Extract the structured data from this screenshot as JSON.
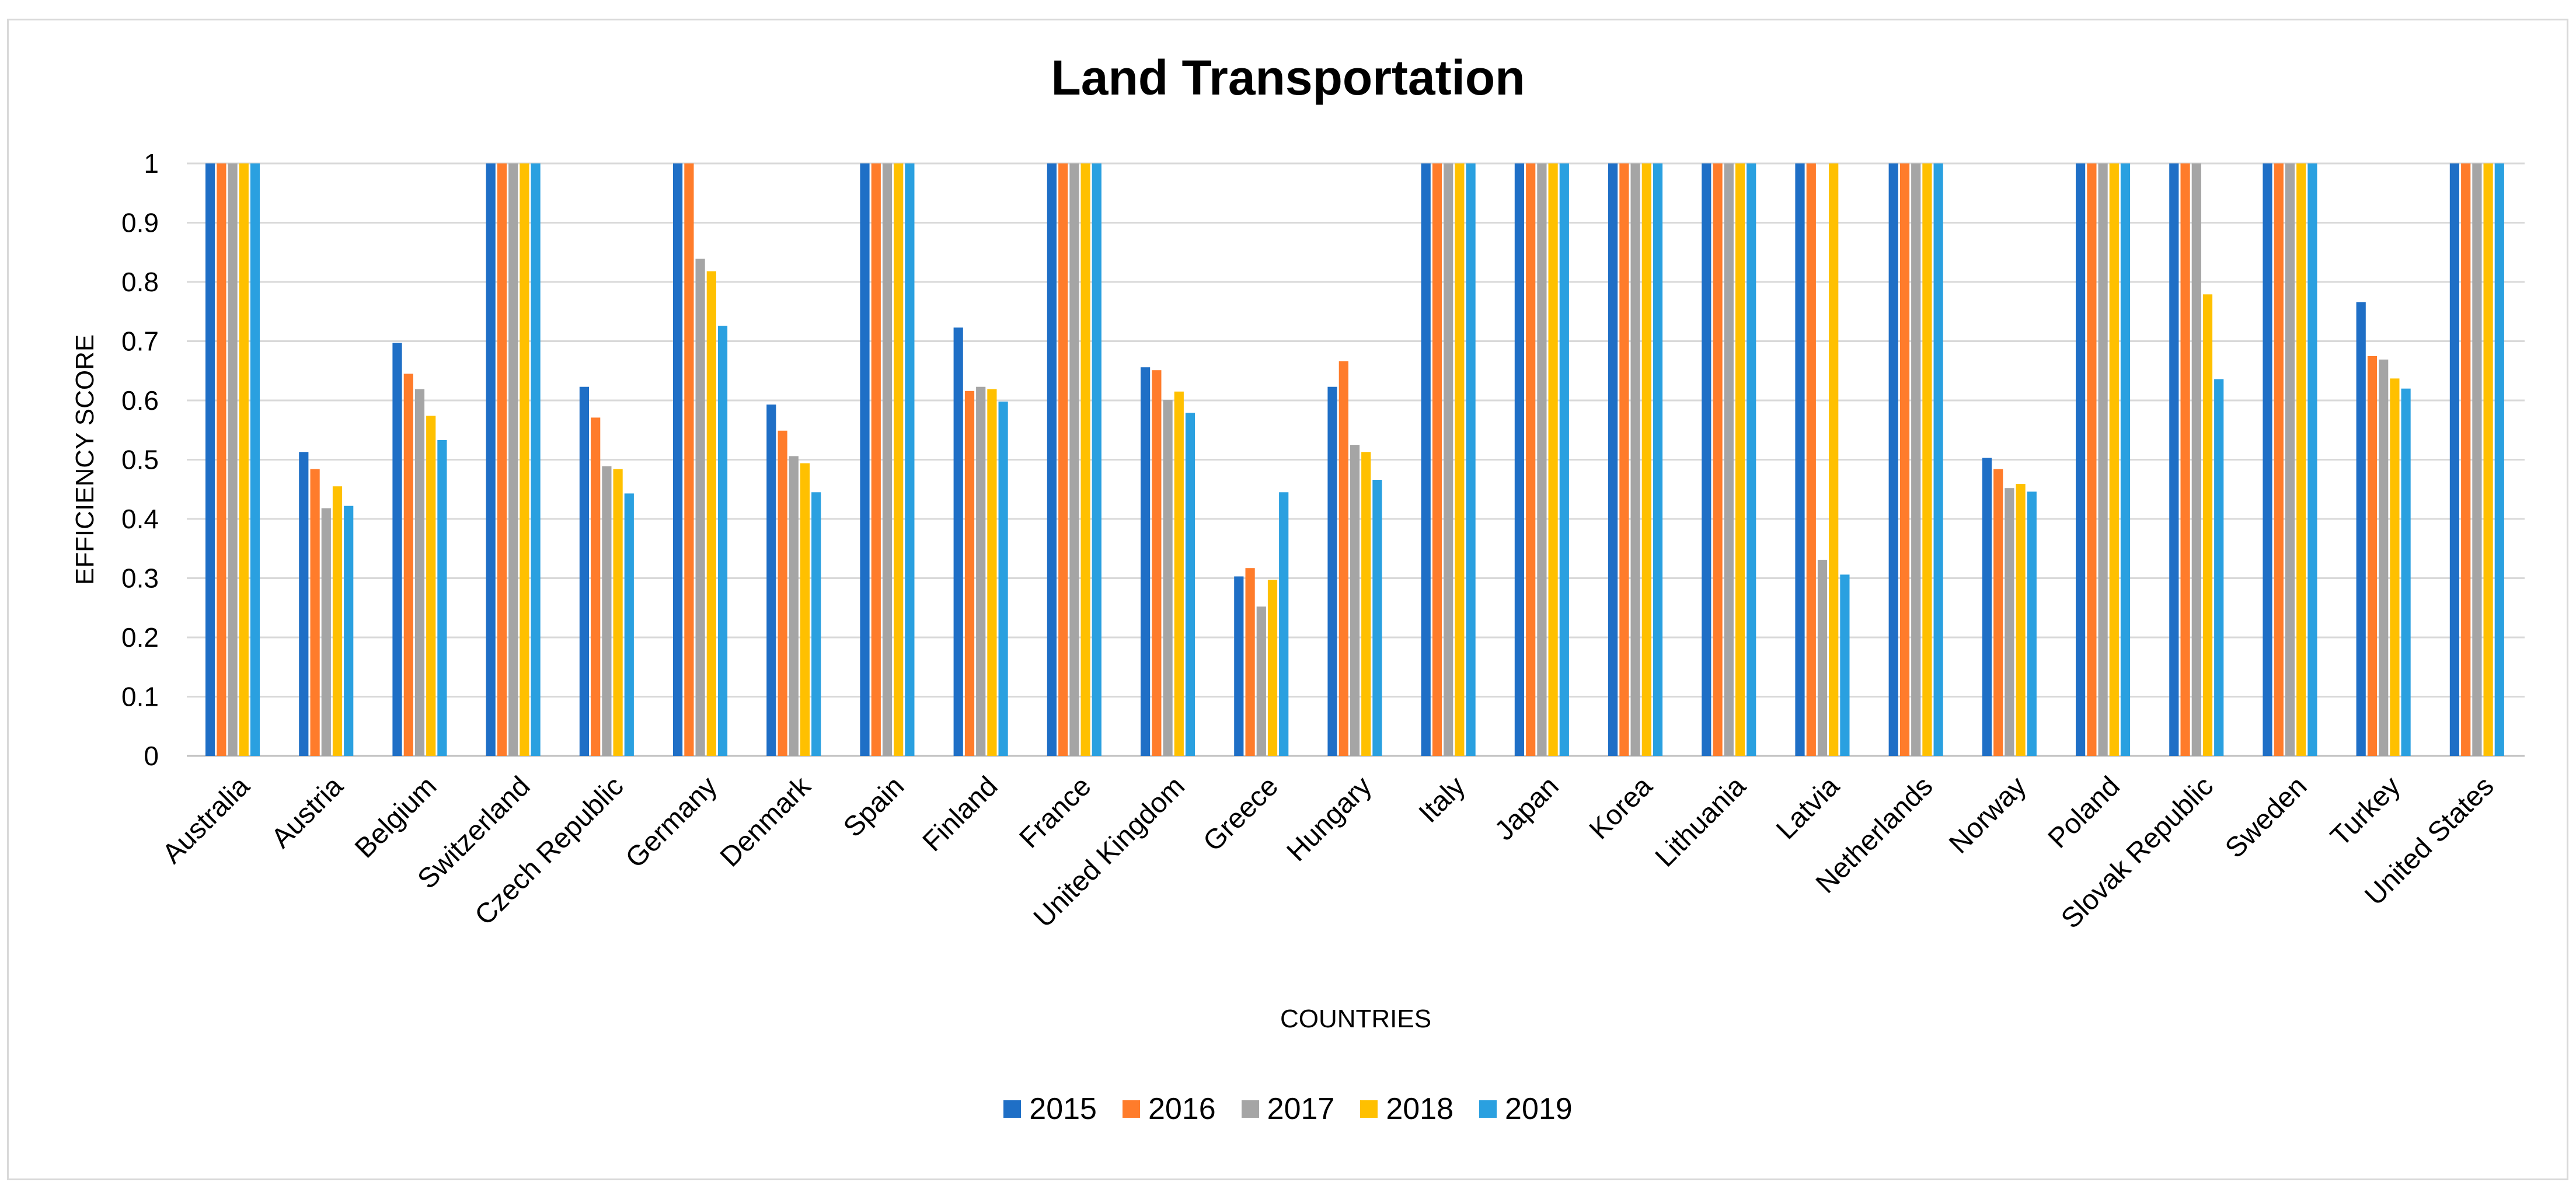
{
  "chart_data": {
    "type": "bar",
    "title": "Land Transportation",
    "xlabel": "COUNTRIES",
    "ylabel": "EFFICIENCY SCORE",
    "ylim": [
      0,
      1
    ],
    "yticks": [
      "0",
      "0.1",
      "0.2",
      "0.3",
      "0.4",
      "0.5",
      "0.6",
      "0.7",
      "0.8",
      "0.9",
      "1"
    ],
    "grid": true,
    "legend_position": "bottom",
    "categories": [
      "Australia",
      "Austria",
      "Belgium",
      "Switzerland",
      "Czech Republic",
      "Germany",
      "Denmark",
      "Spain",
      "Finland",
      "France",
      "United Kingdom",
      "Greece",
      "Hungary",
      "Italy",
      "Japan",
      "Korea",
      "Lithuania",
      "Latvia",
      "Netherlands",
      "Norway",
      "Poland",
      "Slovak Republic",
      "Sweden",
      "Turkey",
      "United States"
    ],
    "series": [
      {
        "name": "2015",
        "color": "#1f6fc6",
        "values": [
          1,
          0.513,
          0.697,
          1,
          0.623,
          1,
          0.593,
          1,
          0.723,
          1,
          0.656,
          0.303,
          0.623,
          1,
          1,
          1,
          1,
          1,
          1,
          0.503,
          1,
          1,
          1,
          0.766,
          1
        ]
      },
      {
        "name": "2016",
        "color": "#ff7c2b",
        "values": [
          1,
          0.484,
          0.645,
          1,
          0.571,
          1,
          0.549,
          1,
          0.616,
          1,
          0.651,
          0.317,
          0.666,
          1,
          1,
          1,
          1,
          1,
          1,
          0.484,
          1,
          1,
          1,
          0.675,
          1
        ]
      },
      {
        "name": "2017",
        "color": "#a5a5a5",
        "values": [
          1,
          0.418,
          0.619,
          1,
          0.489,
          0.839,
          0.506,
          1,
          0.623,
          1,
          0.601,
          0.252,
          0.525,
          1,
          1,
          1,
          1,
          0.331,
          1,
          0.452,
          1,
          1,
          1,
          0.669,
          1
        ]
      },
      {
        "name": "2018",
        "color": "#ffc000",
        "values": [
          1,
          0.455,
          0.574,
          1,
          0.484,
          0.818,
          0.494,
          1,
          0.619,
          1,
          0.615,
          0.297,
          0.513,
          1,
          1,
          1,
          1,
          1,
          1,
          0.459,
          1,
          0.779,
          1,
          0.637,
          1
        ]
      },
      {
        "name": "2019",
        "color": "#2aa0e0",
        "values": [
          1,
          0.422,
          0.533,
          1,
          0.443,
          0.726,
          0.445,
          1,
          0.598,
          1,
          0.579,
          0.445,
          0.466,
          1,
          1,
          1,
          1,
          0.306,
          1,
          0.446,
          1,
          0.636,
          1,
          0.62,
          1
        ]
      }
    ]
  }
}
